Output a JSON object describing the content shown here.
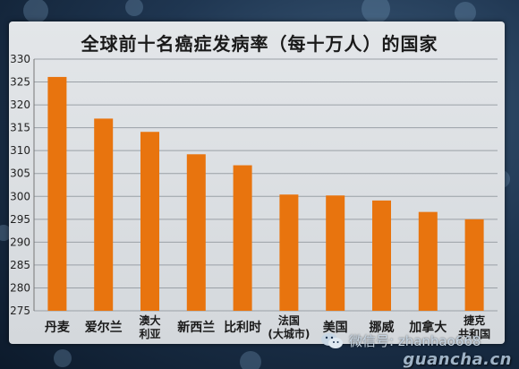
{
  "chart_data": {
    "type": "bar",
    "title": "全球前十名癌症发病率（每十万人）的国家",
    "categories": [
      [
        "丹麦"
      ],
      [
        "爱尔兰"
      ],
      [
        "澳大",
        "利亚"
      ],
      [
        "新西兰"
      ],
      [
        "比利时"
      ],
      [
        "法国",
        "(大城市)"
      ],
      [
        "美国"
      ],
      [
        "挪威"
      ],
      [
        "加拿大"
      ],
      [
        "捷克",
        "共和国"
      ]
    ],
    "values": [
      326.1,
      317.0,
      314.1,
      309.2,
      306.8,
      300.4,
      300.2,
      299.1,
      296.6,
      295.0
    ],
    "ylim": [
      275,
      330
    ],
    "yticks": [
      "275",
      "280",
      "285",
      "290",
      "295",
      "300",
      "305",
      "310",
      "315",
      "320",
      "325",
      "330"
    ],
    "grid": true,
    "bar_color": "#e8740e",
    "grid_color": "#9aa0a6"
  },
  "watermark": {
    "icon": "wechat-icon",
    "text": "微信号: zhanhao668"
  },
  "site": "guancha.cn"
}
